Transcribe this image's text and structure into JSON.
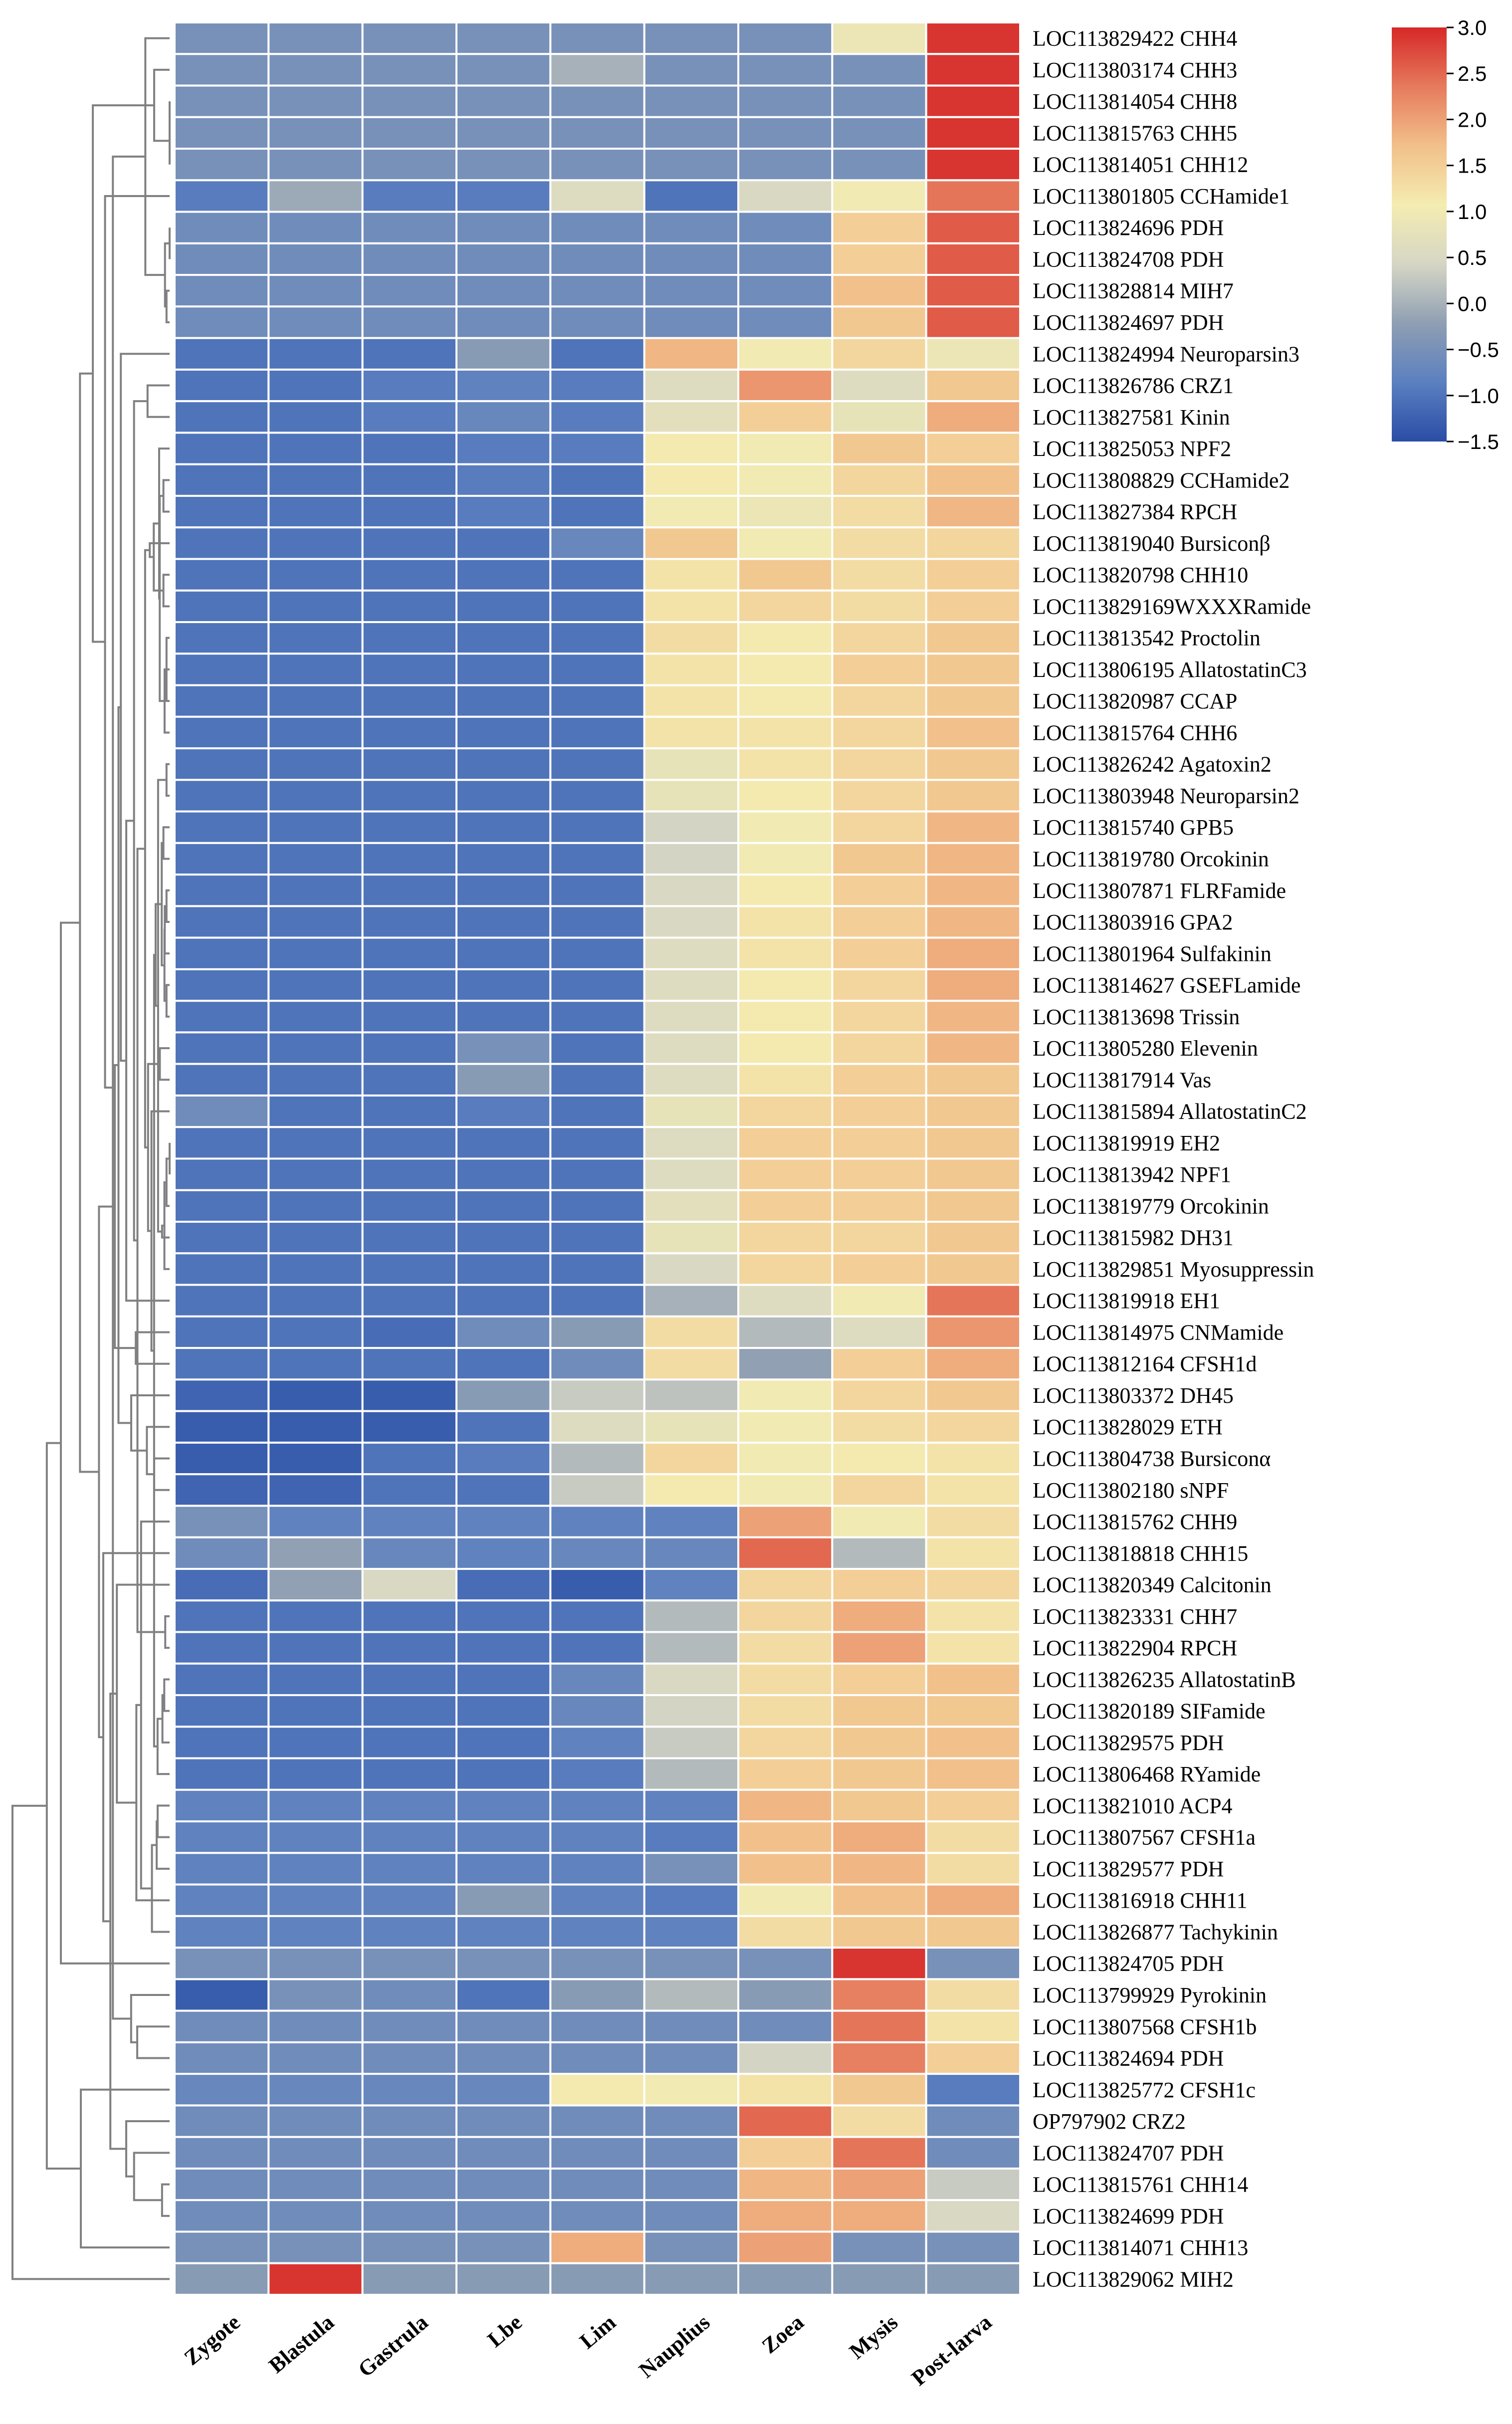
{
  "chart_data": {
    "type": "heatmap",
    "title": "",
    "columns": [
      "Zygote",
      "Blastula",
      "Gastrula",
      "Lbe",
      "Lim",
      "Nauplius",
      "Zoea",
      "Mysis",
      "Post-larva"
    ],
    "rows": [
      {
        "label": "LOC113829422 CHH4",
        "values": [
          -0.5,
          -0.5,
          -0.5,
          -0.5,
          -0.5,
          -0.5,
          -0.5,
          0.9,
          2.9
        ]
      },
      {
        "label": "LOC113803174 CHH3",
        "values": [
          -0.5,
          -0.5,
          -0.5,
          -0.5,
          0.0,
          -0.5,
          -0.5,
          -0.5,
          2.9
        ]
      },
      {
        "label": "LOC113814054 CHH8",
        "values": [
          -0.5,
          -0.5,
          -0.5,
          -0.5,
          -0.5,
          -0.5,
          -0.5,
          -0.5,
          2.9
        ]
      },
      {
        "label": "LOC113815763 CHH5",
        "values": [
          -0.5,
          -0.5,
          -0.5,
          -0.5,
          -0.5,
          -0.5,
          -0.5,
          -0.5,
          2.9
        ]
      },
      {
        "label": "LOC113814051 CHH12",
        "values": [
          -0.5,
          -0.5,
          -0.5,
          -0.5,
          -0.5,
          -0.5,
          -0.5,
          -0.5,
          2.9
        ]
      },
      {
        "label": "LOC113801805 CCHamide1",
        "values": [
          -0.9,
          -0.1,
          -0.9,
          -0.9,
          0.6,
          -1.0,
          0.5,
          1.0,
          2.4
        ]
      },
      {
        "label": "LOC113824696 PDH",
        "values": [
          -0.6,
          -0.6,
          -0.6,
          -0.6,
          -0.6,
          -0.6,
          -0.6,
          1.5,
          2.6
        ]
      },
      {
        "label": "LOC113824708 PDH",
        "values": [
          -0.6,
          -0.6,
          -0.6,
          -0.6,
          -0.6,
          -0.6,
          -0.6,
          1.5,
          2.6
        ]
      },
      {
        "label": "LOC113828814 MIH7",
        "values": [
          -0.6,
          -0.6,
          -0.6,
          -0.6,
          -0.6,
          -0.6,
          -0.6,
          1.7,
          2.6
        ]
      },
      {
        "label": "LOC113824697 PDH",
        "values": [
          -0.6,
          -0.6,
          -0.6,
          -0.6,
          -0.6,
          -0.6,
          -0.6,
          1.6,
          2.6
        ]
      },
      {
        "label": "LOC113824994 Neuroparsin3",
        "values": [
          -1.0,
          -1.0,
          -1.0,
          -0.3,
          -1.0,
          1.8,
          1.0,
          1.4,
          0.9
        ]
      },
      {
        "label": "LOC113826786 CRZ1",
        "values": [
          -1.0,
          -1.0,
          -0.9,
          -0.8,
          -0.9,
          0.6,
          2.1,
          0.6,
          1.6
        ]
      },
      {
        "label": "LOC113827581 Kinin",
        "values": [
          -1.0,
          -1.0,
          -0.9,
          -0.7,
          -0.9,
          0.7,
          1.5,
          0.8,
          1.9
        ]
      },
      {
        "label": "LOC113825053 NPF2",
        "values": [
          -1.0,
          -1.0,
          -1.0,
          -0.9,
          -0.9,
          1.1,
          1.0,
          1.6,
          1.5
        ]
      },
      {
        "label": "LOC113808829 CCHamide2",
        "values": [
          -1.0,
          -1.0,
          -1.0,
          -0.9,
          -1.0,
          1.1,
          1.0,
          1.4,
          1.7
        ]
      },
      {
        "label": "LOC113827384 RPCH",
        "values": [
          -1.0,
          -1.0,
          -1.0,
          -0.9,
          -1.0,
          1.0,
          0.9,
          1.3,
          1.8
        ]
      },
      {
        "label": "LOC113819040 Bursiconβ",
        "values": [
          -1.0,
          -1.0,
          -1.0,
          -1.0,
          -0.7,
          1.6,
          1.0,
          1.3,
          1.4
        ]
      },
      {
        "label": "LOC113820798 CHH10",
        "values": [
          -1.0,
          -1.0,
          -1.0,
          -1.0,
          -1.0,
          1.2,
          1.6,
          1.3,
          1.5
        ]
      },
      {
        "label": "LOC113829169WXXXRamide",
        "values": [
          -1.0,
          -1.0,
          -1.0,
          -1.0,
          -1.0,
          1.2,
          1.4,
          1.3,
          1.5
        ]
      },
      {
        "label": "LOC113813542 Proctolin",
        "values": [
          -1.0,
          -1.0,
          -1.0,
          -1.0,
          -1.0,
          1.3,
          1.1,
          1.4,
          1.6
        ]
      },
      {
        "label": "LOC113806195 AllatostatinC3",
        "values": [
          -1.0,
          -1.0,
          -1.0,
          -1.0,
          -1.0,
          1.2,
          1.1,
          1.5,
          1.6
        ]
      },
      {
        "label": "LOC113820987 CCAP",
        "values": [
          -1.0,
          -1.0,
          -1.0,
          -1.0,
          -1.0,
          1.2,
          1.1,
          1.4,
          1.6
        ]
      },
      {
        "label": "LOC113815764 CHH6",
        "values": [
          -1.0,
          -1.0,
          -1.0,
          -1.0,
          -1.0,
          1.2,
          1.2,
          1.4,
          1.7
        ]
      },
      {
        "label": "LOC113826242 Agatoxin2",
        "values": [
          -1.0,
          -1.0,
          -1.0,
          -1.0,
          -1.0,
          0.8,
          1.2,
          1.4,
          1.6
        ]
      },
      {
        "label": "LOC113803948 Neuroparsin2",
        "values": [
          -1.0,
          -1.0,
          -1.0,
          -1.0,
          -1.0,
          0.8,
          1.1,
          1.4,
          1.6
        ]
      },
      {
        "label": "LOC113815740 GPB5",
        "values": [
          -1.0,
          -1.0,
          -1.0,
          -1.0,
          -1.0,
          0.4,
          1.0,
          1.4,
          1.8
        ]
      },
      {
        "label": "LOC113819780 Orcokinin",
        "values": [
          -1.0,
          -1.0,
          -1.0,
          -1.0,
          -1.0,
          0.4,
          1.0,
          1.6,
          1.8
        ]
      },
      {
        "label": "LOC113807871 FLRFamide",
        "values": [
          -1.0,
          -1.0,
          -1.0,
          -1.0,
          -1.0,
          0.5,
          1.1,
          1.5,
          1.8
        ]
      },
      {
        "label": "LOC113803916 GPA2",
        "values": [
          -1.0,
          -1.0,
          -1.0,
          -1.0,
          -1.0,
          0.5,
          1.2,
          1.5,
          1.8
        ]
      },
      {
        "label": "LOC113801964 Sulfakinin",
        "values": [
          -1.0,
          -1.0,
          -1.0,
          -1.0,
          -1.0,
          0.6,
          1.2,
          1.5,
          1.9
        ]
      },
      {
        "label": "LOC113814627 GSEFLamide",
        "values": [
          -1.0,
          -1.0,
          -1.0,
          -1.0,
          -1.0,
          0.6,
          1.1,
          1.4,
          1.9
        ]
      },
      {
        "label": "LOC113813698 Trissin",
        "values": [
          -1.0,
          -1.0,
          -1.0,
          -1.0,
          -1.0,
          0.6,
          1.1,
          1.4,
          1.8
        ]
      },
      {
        "label": "LOC113805280 Elevenin",
        "values": [
          -1.0,
          -1.0,
          -1.0,
          -0.5,
          -1.0,
          0.6,
          1.1,
          1.4,
          1.8
        ]
      },
      {
        "label": "LOC113817914 Vas",
        "values": [
          -1.0,
          -1.0,
          -1.0,
          -0.3,
          -1.0,
          0.6,
          1.2,
          1.5,
          1.6
        ]
      },
      {
        "label": "LOC113815894 AllatostatinC2",
        "values": [
          -0.6,
          -1.0,
          -1.0,
          -0.9,
          -1.0,
          0.8,
          1.4,
          1.5,
          1.6
        ]
      },
      {
        "label": "LOC113819919 EH2",
        "values": [
          -1.0,
          -1.0,
          -1.0,
          -1.0,
          -1.0,
          0.6,
          1.5,
          1.5,
          1.6
        ]
      },
      {
        "label": "LOC113813942 NPF1",
        "values": [
          -1.0,
          -1.0,
          -1.0,
          -1.0,
          -1.0,
          0.6,
          1.5,
          1.5,
          1.6
        ]
      },
      {
        "label": "LOC113819779 Orcokinin",
        "values": [
          -1.0,
          -1.0,
          -1.0,
          -1.0,
          -1.0,
          0.7,
          1.5,
          1.5,
          1.6
        ]
      },
      {
        "label": "LOC113815982 DH31",
        "values": [
          -1.0,
          -1.0,
          -1.0,
          -1.0,
          -1.0,
          0.8,
          1.4,
          1.4,
          1.6
        ]
      },
      {
        "label": "LOC113829851 Myosuppressin",
        "values": [
          -1.0,
          -1.0,
          -1.0,
          -1.0,
          -1.0,
          0.5,
          1.4,
          1.5,
          1.6
        ]
      },
      {
        "label": "LOC113819918 EH1",
        "values": [
          -1.0,
          -1.0,
          -1.0,
          -1.0,
          -1.0,
          0.0,
          0.6,
          1.0,
          2.4
        ]
      },
      {
        "label": "LOC113814975 CNMamide",
        "values": [
          -1.0,
          -1.0,
          -1.1,
          -0.6,
          -0.3,
          1.3,
          0.1,
          0.6,
          2.1
        ]
      },
      {
        "label": "LOC113812164 CFSH1d",
        "values": [
          -1.0,
          -1.0,
          -1.0,
          -1.0,
          -0.6,
          1.3,
          -0.2,
          1.5,
          1.9
        ]
      },
      {
        "label": "LOC113803372 DH45",
        "values": [
          -1.2,
          -1.3,
          -1.3,
          -0.3,
          0.3,
          0.2,
          1.0,
          1.4,
          1.6
        ]
      },
      {
        "label": "LOC113828029 ETH",
        "values": [
          -1.3,
          -1.3,
          -1.3,
          -1.0,
          0.6,
          0.8,
          1.0,
          1.3,
          1.4
        ]
      },
      {
        "label": "LOC113804738 Bursiconα",
        "values": [
          -1.3,
          -1.3,
          -1.0,
          -0.9,
          0.1,
          1.4,
          1.0,
          1.1,
          1.2
        ]
      },
      {
        "label": "LOC113802180 sNPF",
        "values": [
          -1.2,
          -1.2,
          -1.0,
          -1.0,
          0.3,
          1.1,
          1.0,
          1.4,
          1.2
        ]
      },
      {
        "label": "LOC113815762 CHH9",
        "values": [
          -0.5,
          -0.8,
          -0.8,
          -0.8,
          -0.8,
          -0.8,
          2.0,
          1.0,
          1.3
        ]
      },
      {
        "label": "LOC113818818 CHH15",
        "values": [
          -0.6,
          -0.2,
          -0.7,
          -0.8,
          -0.7,
          -0.7,
          2.5,
          0.1,
          1.2
        ]
      },
      {
        "label": "LOC113820349 Calcitonin",
        "values": [
          -1.1,
          -0.2,
          0.5,
          -1.1,
          -1.3,
          -0.8,
          1.4,
          1.5,
          1.4
        ]
      },
      {
        "label": "LOC113823331 CHH7",
        "values": [
          -1.0,
          -1.0,
          -1.0,
          -1.0,
          -1.0,
          0.1,
          1.4,
          1.9,
          1.2
        ]
      },
      {
        "label": "LOC113822904 RPCH",
        "values": [
          -1.0,
          -1.0,
          -1.0,
          -1.0,
          -1.0,
          0.1,
          1.3,
          2.0,
          1.2
        ]
      },
      {
        "label": "LOC113826235 AllatostatinB",
        "values": [
          -1.0,
          -1.0,
          -1.0,
          -1.0,
          -0.7,
          0.5,
          1.3,
          1.5,
          1.7
        ]
      },
      {
        "label": "LOC113820189 SIFamide",
        "values": [
          -1.0,
          -1.0,
          -1.0,
          -1.0,
          -0.7,
          0.4,
          1.3,
          1.6,
          1.6
        ]
      },
      {
        "label": "LOC113829575 PDH",
        "values": [
          -1.0,
          -1.0,
          -1.0,
          -1.0,
          -0.8,
          0.3,
          1.4,
          1.6,
          1.7
        ]
      },
      {
        "label": "LOC113806468 RYamide",
        "values": [
          -1.0,
          -1.0,
          -1.0,
          -1.0,
          -0.9,
          0.1,
          1.5,
          1.6,
          1.7
        ]
      },
      {
        "label": "LOC113821010 ACP4",
        "values": [
          -0.8,
          -0.8,
          -0.8,
          -0.8,
          -0.8,
          -0.8,
          1.8,
          1.6,
          1.5
        ]
      },
      {
        "label": "LOC113807567 CFSH1a",
        "values": [
          -0.8,
          -0.8,
          -0.8,
          -0.8,
          -0.8,
          -0.9,
          1.7,
          1.9,
          1.3
        ]
      },
      {
        "label": "LOC113829577 PDH",
        "values": [
          -0.8,
          -0.8,
          -0.8,
          -0.8,
          -0.8,
          -0.5,
          1.7,
          1.8,
          1.3
        ]
      },
      {
        "label": "LOC113816918 CHH11",
        "values": [
          -0.8,
          -0.8,
          -0.8,
          -0.3,
          -0.8,
          -0.9,
          1.0,
          1.7,
          1.9
        ]
      },
      {
        "label": "LOC113826877 Tachykinin",
        "values": [
          -0.8,
          -0.8,
          -0.8,
          -0.8,
          -0.8,
          -0.8,
          1.3,
          1.6,
          1.6
        ]
      },
      {
        "label": "LOC113824705 PDH",
        "values": [
          -0.5,
          -0.5,
          -0.5,
          -0.5,
          -0.5,
          -0.5,
          -0.5,
          2.9,
          -0.5
        ]
      },
      {
        "label": "LOC113799929 Pyrokinin",
        "values": [
          -1.3,
          -0.5,
          -0.6,
          -1.0,
          -0.3,
          0.1,
          -0.3,
          2.3,
          1.3
        ]
      },
      {
        "label": "LOC113807568 CFSH1b",
        "values": [
          -0.6,
          -0.6,
          -0.6,
          -0.6,
          -0.6,
          -0.6,
          -0.6,
          2.4,
          1.2
        ]
      },
      {
        "label": "LOC113824694 PDH",
        "values": [
          -0.6,
          -0.6,
          -0.6,
          -0.6,
          -0.6,
          -0.6,
          0.4,
          2.3,
          1.5
        ]
      },
      {
        "label": "LOC113825772 CFSH1c",
        "values": [
          -0.7,
          -0.7,
          -0.7,
          -0.7,
          1.1,
          1.0,
          1.2,
          1.6,
          -0.9
        ]
      },
      {
        "label": "OP797902 CRZ2",
        "values": [
          -0.6,
          -0.6,
          -0.6,
          -0.6,
          -0.6,
          -0.6,
          2.5,
          1.3,
          -0.6
        ]
      },
      {
        "label": "LOC113824707 PDH",
        "values": [
          -0.6,
          -0.6,
          -0.6,
          -0.6,
          -0.6,
          -0.6,
          1.5,
          2.4,
          -0.6
        ]
      },
      {
        "label": "LOC113815761 CHH14",
        "values": [
          -0.6,
          -0.6,
          -0.6,
          -0.6,
          -0.6,
          -0.6,
          1.8,
          2.0,
          0.3
        ]
      },
      {
        "label": "LOC113824699 PDH",
        "values": [
          -0.6,
          -0.6,
          -0.6,
          -0.6,
          -0.6,
          -0.6,
          1.9,
          1.9,
          0.5
        ]
      },
      {
        "label": "LOC113814071 CHH13",
        "values": [
          -0.5,
          -0.5,
          -0.5,
          -0.5,
          1.9,
          -0.5,
          2.0,
          -0.5,
          -0.5
        ]
      },
      {
        "label": "LOC113829062 MIH2",
        "values": [
          -0.3,
          2.9,
          -0.3,
          -0.3,
          -0.3,
          -0.3,
          -0.3,
          -0.3,
          -0.3
        ]
      }
    ],
    "colorbar": {
      "min": -1.5,
      "max": 3.0,
      "ticks": [
        "3.0",
        "2.5",
        "2.0",
        "1.5",
        "1.0",
        "0.5",
        "0.0",
        "−0.5",
        "−1.0",
        "−1.5"
      ],
      "colormap": [
        "#2a4da5",
        "#5b7fc0",
        "#8f9fb3",
        "#d6d6c5",
        "#f4ecb1",
        "#f2c08a",
        "#e67a5c",
        "#d62828"
      ]
    },
    "dendrogram_color": "#808080",
    "grid_color": "#ffffff"
  }
}
